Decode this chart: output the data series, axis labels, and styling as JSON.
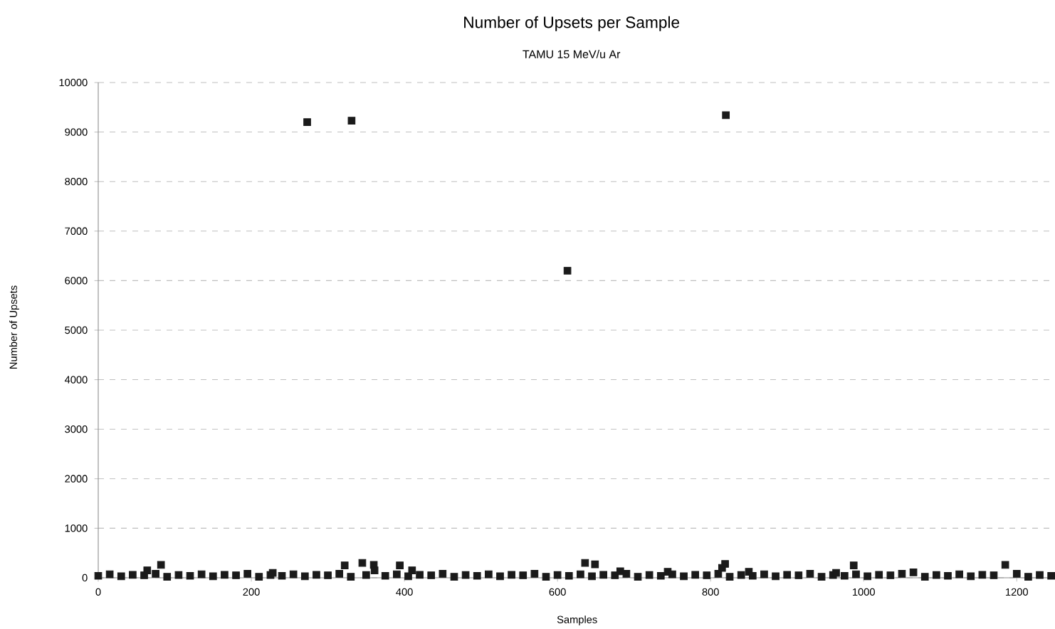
{
  "chart_data": {
    "type": "scatter",
    "title": "Number of Upsets per Sample",
    "subtitle": "TAMU 15 MeV/u Ar",
    "xlabel": "Samples",
    "ylabel": "Number of Upsets",
    "xlim": [
      0,
      1250
    ],
    "ylim": [
      0,
      10000
    ],
    "xticks": [
      0,
      200,
      400,
      600,
      800,
      1000,
      1200
    ],
    "yticks": [
      0,
      1000,
      2000,
      3000,
      4000,
      5000,
      6000,
      7000,
      8000,
      9000,
      10000
    ],
    "grid": "y",
    "marker": "square",
    "series": [
      {
        "color": "#1a1a1a",
        "x": [
          0,
          15,
          30,
          45,
          60,
          64,
          75,
          82,
          90,
          105,
          120,
          135,
          150,
          165,
          180,
          195,
          210,
          225,
          228,
          240,
          255,
          270,
          273,
          285,
          300,
          315,
          322,
          330,
          331,
          345,
          350,
          360,
          361,
          375,
          390,
          394,
          405,
          410,
          420,
          435,
          450,
          465,
          480,
          495,
          510,
          525,
          540,
          555,
          570,
          585,
          600,
          613,
          615,
          630,
          636,
          645,
          649,
          660,
          675,
          682,
          690,
          705,
          720,
          735,
          744,
          750,
          765,
          780,
          795,
          810,
          815,
          819,
          820,
          825,
          840,
          850,
          855,
          870,
          885,
          900,
          915,
          930,
          945,
          960,
          964,
          975,
          987,
          990,
          1005,
          1020,
          1035,
          1050,
          1065,
          1080,
          1095,
          1110,
          1125,
          1140,
          1155,
          1170,
          1185,
          1200,
          1215,
          1230,
          1245
        ],
        "values": [
          40,
          70,
          30,
          60,
          50,
          150,
          80,
          260,
          20,
          55,
          40,
          70,
          30,
          60,
          50,
          80,
          20,
          55,
          100,
          40,
          70,
          30,
          9200,
          60,
          50,
          80,
          250,
          20,
          9230,
          300,
          55,
          260,
          150,
          40,
          70,
          250,
          30,
          150,
          60,
          50,
          80,
          20,
          55,
          40,
          70,
          30,
          60,
          50,
          80,
          20,
          55,
          6200,
          40,
          70,
          300,
          30,
          270,
          60,
          50,
          130,
          80,
          20,
          55,
          40,
          120,
          70,
          30,
          60,
          50,
          80,
          200,
          280,
          9340,
          20,
          55,
          120,
          40,
          70,
          30,
          60,
          50,
          80,
          20,
          55,
          100,
          40,
          250,
          70,
          30,
          60,
          50,
          80,
          110,
          20,
          55,
          40,
          70,
          30,
          60,
          50,
          260,
          80,
          20,
          55,
          40
        ]
      }
    ]
  }
}
